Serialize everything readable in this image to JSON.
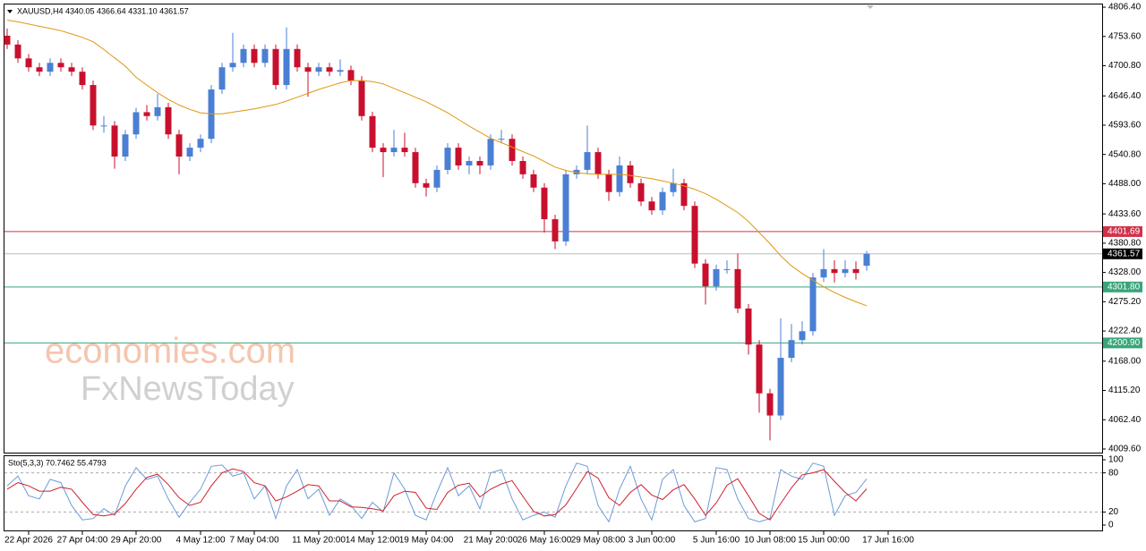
{
  "chart_data": [
    {
      "type": "candlestick",
      "title": "XAUUSD,H4  4340.05 4366.64 4331.10 4361.57",
      "watermarks": [
        "economies.com",
        "FxNewsToday"
      ],
      "up_color": "#4a7fd4",
      "down_color": "#c8102e",
      "categories": [
        null,
        null,
        "22 Apr 2026",
        null,
        null,
        null,
        null,
        "27 Apr 04:00",
        null,
        null,
        null,
        null,
        "29 Apr 20:00",
        null,
        null,
        null,
        null,
        null,
        "4 May 12:00",
        null,
        null,
        null,
        null,
        "7 May 04:00",
        null,
        null,
        null,
        null,
        null,
        "11 May 20:00",
        null,
        null,
        null,
        null,
        "14 May 12:00",
        null,
        null,
        null,
        null,
        "19 May 04:00",
        null,
        null,
        null,
        null,
        null,
        "21 May 20:00",
        null,
        null,
        null,
        null,
        "26 May 16:00",
        null,
        null,
        null,
        null,
        "29 May 08:00",
        null,
        null,
        null,
        null,
        "3 Jun 00:00",
        null,
        null,
        null,
        null,
        null,
        "5 Jun 16:00",
        null,
        null,
        null,
        null,
        "10 Jun 08:00",
        null,
        null,
        null,
        null,
        "15 Jun 00:00",
        null,
        null,
        null,
        null,
        null,
        "17 Jun 16:00"
      ],
      "candles": [
        [
          4755,
          4768,
          4731,
          4739
        ],
        [
          4739,
          4747,
          4706,
          4714
        ],
        [
          4714,
          4722,
          4690,
          4698
        ],
        [
          4698,
          4706,
          4682,
          4690
        ],
        [
          4690,
          4714,
          4682,
          4706
        ],
        [
          4706,
          4714,
          4690,
          4698
        ],
        [
          4698,
          4706,
          4682,
          4690
        ],
        [
          4690,
          4698,
          4658,
          4666
        ],
        [
          4666,
          4674,
          4585,
          4593
        ],
        [
          4593,
          4610,
          4580,
          4593
        ],
        [
          4593,
          4601,
          4515,
          4537
        ],
        [
          4537,
          4585,
          4529,
          4577
        ],
        [
          4577,
          4625,
          4569,
          4617
        ],
        [
          4617,
          4630,
          4602,
          4610
        ],
        [
          4610,
          4650,
          4602,
          4626
        ],
        [
          4626,
          4634,
          4569,
          4577
        ],
        [
          4577,
          4585,
          4505,
          4537
        ],
        [
          4537,
          4561,
          4529,
          4553
        ],
        [
          4553,
          4577,
          4545,
          4569
        ],
        [
          4569,
          4666,
          4561,
          4658
        ],
        [
          4658,
          4706,
          4650,
          4698
        ],
        [
          4698,
          4760,
          4690,
          4706
        ],
        [
          4706,
          4739,
          4698,
          4731
        ],
        [
          4731,
          4739,
          4698,
          4706
        ],
        [
          4706,
          4739,
          4698,
          4731
        ],
        [
          4731,
          4739,
          4658,
          4666
        ],
        [
          4666,
          4770,
          4658,
          4731
        ],
        [
          4731,
          4739,
          4690,
          4698
        ],
        [
          4698,
          4706,
          4645,
          4690
        ],
        [
          4690,
          4706,
          4682,
          4698
        ],
        [
          4698,
          4706,
          4682,
          4690
        ],
        [
          4690,
          4712,
          4682,
          4693
        ],
        [
          4693,
          4701,
          4666,
          4674
        ],
        [
          4674,
          4682,
          4602,
          4610
        ],
        [
          4610,
          4618,
          4545,
          4553
        ],
        [
          4553,
          4561,
          4500,
          4545
        ],
        [
          4545,
          4585,
          4537,
          4553
        ],
        [
          4553,
          4580,
          4537,
          4545
        ],
        [
          4545,
          4553,
          4481,
          4489
        ],
        [
          4489,
          4497,
          4465,
          4481
        ],
        [
          4481,
          4521,
          4473,
          4513
        ],
        [
          4513,
          4561,
          4505,
          4553
        ],
        [
          4553,
          4561,
          4513,
          4521
        ],
        [
          4521,
          4537,
          4505,
          4529
        ],
        [
          4529,
          4537,
          4505,
          4521
        ],
        [
          4521,
          4577,
          4513,
          4569
        ],
        [
          4569,
          4585,
          4561,
          4569
        ],
        [
          4569,
          4577,
          4521,
          4529
        ],
        [
          4529,
          4537,
          4497,
          4505
        ],
        [
          4505,
          4513,
          4473,
          4481
        ],
        [
          4481,
          4489,
          4400,
          4424
        ],
        [
          4424,
          4432,
          4370,
          4384
        ],
        [
          4384,
          4513,
          4376,
          4505
        ],
        [
          4505,
          4521,
          4497,
          4513
        ],
        [
          4513,
          4593,
          4505,
          4545
        ],
        [
          4545,
          4553,
          4497,
          4505
        ],
        [
          4505,
          4513,
          4457,
          4473
        ],
        [
          4473,
          4537,
          4465,
          4521
        ],
        [
          4521,
          4529,
          4481,
          4489
        ],
        [
          4489,
          4497,
          4448,
          4456
        ],
        [
          4456,
          4464,
          4432,
          4440
        ],
        [
          4440,
          4481,
          4432,
          4473
        ],
        [
          4473,
          4515,
          4465,
          4489
        ],
        [
          4489,
          4497,
          4440,
          4448
        ],
        [
          4448,
          4456,
          4336,
          4344
        ],
        [
          4344,
          4352,
          4270,
          4303
        ],
        [
          4303,
          4342,
          4295,
          4334
        ],
        [
          4334,
          4350,
          4326,
          4334
        ],
        [
          4334,
          4362,
          4255,
          4263
        ],
        [
          4263,
          4271,
          4180,
          4198
        ],
        [
          4198,
          4206,
          4075,
          4110
        ],
        [
          4110,
          4118,
          4025,
          4070
        ],
        [
          4070,
          4245,
          4062,
          4174
        ],
        [
          4174,
          4235,
          4166,
          4206
        ],
        [
          4206,
          4240,
          4198,
          4222
        ],
        [
          4222,
          4327,
          4214,
          4319
        ],
        [
          4319,
          4370,
          4311,
          4334
        ],
        [
          4334,
          4350,
          4310,
          4327
        ],
        [
          4327,
          4350,
          4319,
          4334
        ],
        [
          4334,
          4348,
          4315,
          4327
        ],
        [
          4340.05,
          4366.64,
          4331.1,
          4361.57
        ],
        null,
        null
      ],
      "moving_average": {
        "color": "#e0960f",
        "values": [
          4783,
          4780,
          4776,
          4772,
          4768,
          4764,
          4758,
          4752,
          4744,
          4730,
          4715,
          4700,
          4680,
          4666,
          4652,
          4640,
          4630,
          4622,
          4616,
          4614,
          4614,
          4617,
          4620,
          4623,
          4627,
          4631,
          4637,
          4644,
          4651,
          4658,
          4664,
          4670,
          4674,
          4674,
          4672,
          4668,
          4660,
          4652,
          4644,
          4636,
          4626,
          4616,
          4604,
          4592,
          4581,
          4570,
          4562,
          4554,
          4546,
          4538,
          4528,
          4518,
          4512,
          4508,
          4506,
          4505,
          4505,
          4505,
          4503,
          4500,
          4497,
          4493,
          4489,
          4484,
          4478,
          4470,
          4460,
          4448,
          4436,
          4420,
          4400,
          4380,
          4358,
          4340,
          4326,
          4314,
          4302,
          4292,
          4283,
          4275,
          4268,
          null,
          null
        ]
      },
      "levels": [
        {
          "value": 4401.69,
          "color": "#d2314a"
        },
        {
          "value": 4361.57,
          "color": "#000000",
          "line_color": "#bbbbbb"
        },
        {
          "value": 4301.8,
          "label": "4301.80",
          "color": "#3aa57a"
        },
        {
          "value": 4200.9,
          "label": "4200.90",
          "color": "#3aa57a"
        }
      ],
      "ylim": [
        4003.1,
        4812.9
      ],
      "yticks": [
        {
          "value": 4806.4,
          "label": "4806.40"
        },
        {
          "value": 4753.6,
          "label": "4753.60"
        },
        {
          "value": 4700.8,
          "label": "4700.80"
        },
        {
          "value": 4646.4,
          "label": "4646.40"
        },
        {
          "value": 4593.6,
          "label": "4593.60"
        },
        {
          "value": 4540.8,
          "label": "4540.80"
        },
        {
          "value": 4488,
          "label": "4488.00"
        },
        {
          "value": 4433.6,
          "label": "4433.60"
        },
        {
          "value": 4380.8,
          "label": "4380.80"
        },
        {
          "value": 4328,
          "label": "4328.00"
        },
        {
          "value": 4275.2,
          "label": "4275.20"
        },
        {
          "value": 4222.4,
          "label": "4222.40"
        },
        {
          "value": 4168,
          "label": "4168.00"
        },
        {
          "value": 4115.2,
          "label": "4115.20"
        },
        {
          "value": 4062.4,
          "label": "4062.40"
        },
        {
          "value": 4009.6,
          "label": "4009.60"
        }
      ]
    },
    {
      "type": "line",
      "title": "Sto(5,3,3) 70.7462 55.4793",
      "series": [
        {
          "color": "#6b9bd8",
          "values": [
            60,
            75,
            45,
            40,
            70,
            65,
            30,
            8,
            10,
            25,
            15,
            60,
            88,
            70,
            75,
            40,
            12,
            35,
            55,
            90,
            92,
            75,
            80,
            40,
            60,
            10,
            60,
            85,
            40,
            55,
            15,
            40,
            30,
            10,
            35,
            20,
            80,
            55,
            15,
            8,
            50,
            88,
            45,
            60,
            25,
            80,
            85,
            40,
            8,
            15,
            20,
            12,
            60,
            95,
            90,
            30,
            5,
            55,
            90,
            40,
            8,
            70,
            85,
            30,
            5,
            10,
            88,
            85,
            40,
            10,
            5,
            10,
            85,
            75,
            70,
            95,
            90,
            15,
            45,
            50,
            70.7462,
            null,
            null
          ]
        },
        {
          "color": "#d0202e",
          "values": [
            55,
            65,
            60,
            52,
            52,
            58,
            55,
            35,
            16,
            14,
            17,
            33,
            55,
            73,
            78,
            62,
            42,
            30,
            35,
            60,
            80,
            86,
            82,
            65,
            60,
            37,
            43,
            52,
            62,
            60,
            37,
            37,
            28,
            27,
            25,
            22,
            45,
            52,
            50,
            26,
            24,
            50,
            61,
            64,
            43,
            55,
            63,
            68,
            44,
            21,
            14,
            16,
            31,
            56,
            82,
            72,
            42,
            30,
            50,
            62,
            46,
            39,
            54,
            62,
            40,
            15,
            34,
            61,
            71,
            45,
            18,
            8,
            33,
            57,
            77,
            80,
            85,
            67,
            50,
            37,
            55.4793,
            null,
            null
          ]
        }
      ],
      "levels": [
        80,
        20
      ],
      "ylim": [
        -8.2,
        105.5
      ],
      "yticks": [
        100,
        80,
        20,
        0
      ]
    }
  ]
}
